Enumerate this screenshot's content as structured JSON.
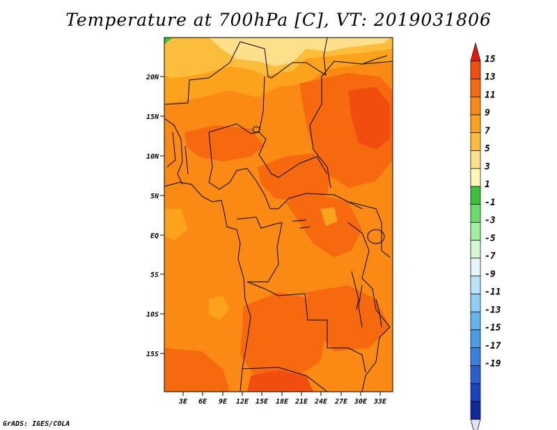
{
  "title": "Temperature at 700hPa [C], VT: 2019031806",
  "credit": "GrADS: IGES/COLA",
  "map": {
    "lat_labels": [
      "20N",
      "15N",
      "10N",
      "5N",
      "EQ",
      "5S",
      "10S",
      "15S"
    ],
    "lon_labels": [
      "3E",
      "6E",
      "9E",
      "12E",
      "15E",
      "18E",
      "21E",
      "24E",
      "27E",
      "30E",
      "33E"
    ]
  },
  "colorbar": {
    "labels": [
      "15",
      "13",
      "11",
      "9",
      "7",
      "5",
      "3",
      "1",
      "-1",
      "-3",
      "-5",
      "-7",
      "-9",
      "-11",
      "-13",
      "-15",
      "-17",
      "-19"
    ],
    "colors": [
      "#e41a0a",
      "#f04d0e",
      "#f6690f",
      "#fa8a14",
      "#fca21c",
      "#fdbd3c",
      "#fee08a",
      "#fff8b8",
      "#3cc23c",
      "#6cdc6c",
      "#a0f0a0",
      "#d4f8d4",
      "#e6f5fb",
      "#b9e3f8",
      "#8fcff3",
      "#65b5ec",
      "#4c9be6",
      "#3a7fdc",
      "#2a5fcf",
      "#1c44bc",
      "#0f2a9a",
      "#070c5c"
    ]
  }
}
